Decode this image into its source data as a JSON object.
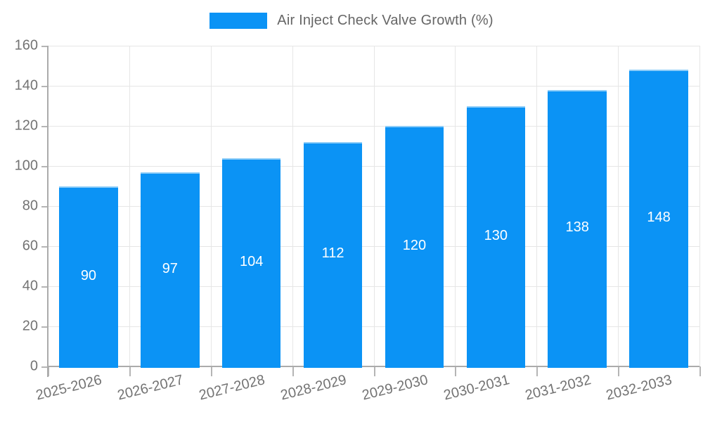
{
  "legend": {
    "label": "Air Inject Check Valve Growth (%)"
  },
  "chart_data": {
    "type": "bar",
    "title": "Air Inject Check Valve Growth (%)",
    "categories": [
      "2025-2026",
      "2026-2027",
      "2027-2028",
      "2028-2029",
      "2029-2030",
      "2030-2031",
      "2031-2032",
      "2032-2033"
    ],
    "values": [
      90,
      97,
      104,
      112,
      120,
      130,
      138,
      148
    ],
    "value_labels": [
      "90",
      "97",
      "104",
      "112",
      "120",
      "130",
      "138",
      "148"
    ],
    "xlabel": "",
    "ylabel": "",
    "ylim": [
      0,
      160
    ],
    "yticks": [
      0,
      20,
      40,
      60,
      80,
      100,
      120,
      140,
      160
    ],
    "grid": true,
    "legend_position": "top",
    "bar_color": "#0b93f5",
    "value_label_color": "#ffffff",
    "axis_text_color": "#737373",
    "gridline_color": "#e6e6e6",
    "axis_line_color": "#ababab"
  }
}
